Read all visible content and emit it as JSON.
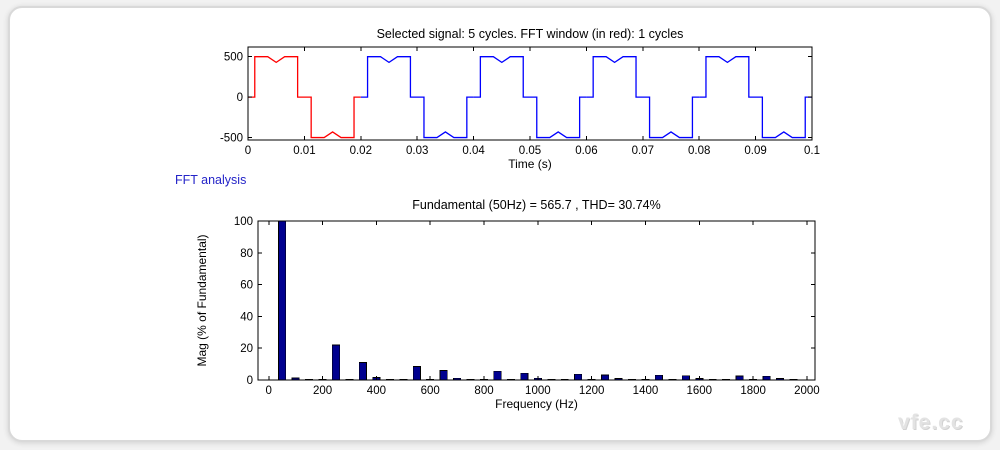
{
  "fft_label": "FFT analysis",
  "watermark": "vfe.cc",
  "colors": {
    "fft_window": "#ff0000",
    "signal": "#0000ff",
    "bar_fill": "#00008f",
    "bar_edge": "#000000",
    "axis": "#000000",
    "fft_label_text": "#2424c8",
    "panel_border": "#d9d9d9"
  },
  "chart_data": [
    {
      "id": "signal",
      "type": "line",
      "title": "Selected signal: 5 cycles. FFT window (in red): 1 cycles",
      "xlabel": "Time (s)",
      "ylabel": "",
      "xlim": [
        0,
        0.1
      ],
      "ylim": [
        -530,
        620
      ],
      "xticks": {
        "values": [
          0,
          0.01,
          0.02,
          0.03,
          0.04,
          0.05,
          0.06,
          0.07,
          0.08,
          0.09,
          0.1
        ],
        "labels": [
          "0",
          "0.01",
          "0.02",
          "0.03",
          "0.04",
          "0.05",
          "0.06",
          "0.07",
          "0.08",
          "0.09",
          "0.1"
        ]
      },
      "yticks": {
        "values": [
          500,
          0,
          -500
        ],
        "labels": [
          "500",
          "0",
          "-500"
        ]
      },
      "period": 0.02,
      "cycles": 5,
      "window_cycles": 1,
      "window_color": "#ff0000",
      "signal_color": "#0000ff",
      "cycle_points": [
        [
          0,
          0
        ],
        [
          0.0012,
          0
        ],
        [
          0.0012,
          500
        ],
        [
          0.0035,
          500
        ],
        [
          0.005,
          430
        ],
        [
          0.0065,
          500
        ],
        [
          0.0088,
          500
        ],
        [
          0.0088,
          0
        ],
        [
          0.0112,
          0
        ],
        [
          0.0112,
          -500
        ],
        [
          0.0135,
          -500
        ],
        [
          0.015,
          -430
        ],
        [
          0.0165,
          -500
        ],
        [
          0.0188,
          -500
        ],
        [
          0.0188,
          0
        ],
        [
          0.02,
          0
        ]
      ]
    },
    {
      "id": "fft",
      "type": "bar",
      "title": "Fundamental (50Hz) = 565.7 , THD= 30.74%",
      "xlabel": "Frequency (Hz)",
      "ylabel": "Mag (% of Fundamental)",
      "xlim": [
        -40,
        2030
      ],
      "ylim": [
        0,
        100
      ],
      "xticks": {
        "values": [
          0,
          200,
          400,
          600,
          800,
          1000,
          1200,
          1400,
          1600,
          1800,
          2000
        ],
        "labels": [
          "0",
          "200",
          "400",
          "600",
          "800",
          "1000",
          "1200",
          "1400",
          "1600",
          "1800",
          "2000"
        ]
      },
      "yticks": {
        "values": [
          0,
          20,
          40,
          60,
          80,
          100
        ],
        "labels": [
          "0",
          "20",
          "40",
          "60",
          "80",
          "100"
        ]
      },
      "bar_color": "#00008f",
      "bar_edge": "#000000",
      "bar_width_hz": 27,
      "frequencies": [
        50,
        100,
        150,
        200,
        250,
        300,
        350,
        400,
        450,
        500,
        550,
        600,
        650,
        700,
        750,
        800,
        850,
        900,
        950,
        1000,
        1050,
        1100,
        1150,
        1200,
        1250,
        1300,
        1350,
        1400,
        1450,
        1500,
        1550,
        1600,
        1650,
        1700,
        1750,
        1800,
        1850,
        1900,
        1950
      ],
      "values": [
        100,
        1.3,
        0.35,
        0.35,
        22,
        0.35,
        11,
        1.6,
        0.35,
        0.35,
        8.5,
        0.35,
        6,
        1.1,
        0.35,
        0.35,
        5.5,
        0.35,
        4.3,
        1.1,
        0.35,
        0.35,
        3.7,
        0.35,
        3.2,
        1.0,
        0.35,
        0.35,
        3.0,
        0.35,
        2.6,
        1.0,
        0.35,
        0.35,
        2.5,
        0.35,
        2.3,
        1.0,
        0.35
      ]
    }
  ]
}
